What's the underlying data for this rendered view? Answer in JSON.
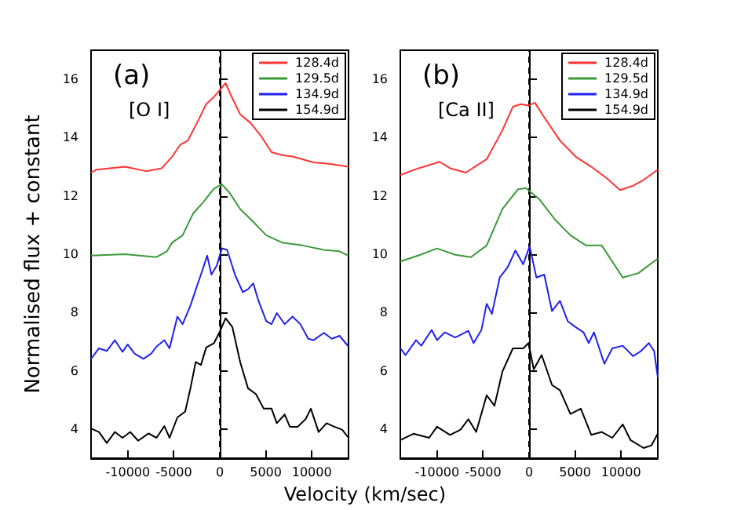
{
  "chart_data": [
    {
      "type": "line",
      "xlabel": "Velocity (km/sec)",
      "ylabel": "Normalised flux + constant",
      "annotations": [
        "(a)",
        "[O I]"
      ],
      "xlim": [
        -14000,
        14000
      ],
      "xticks": [
        -10000,
        -5000,
        0,
        5000,
        10000
      ],
      "ylim": [
        3,
        17
      ],
      "yticks": [
        4,
        6,
        8,
        10,
        12,
        14,
        16
      ],
      "grid": false,
      "legend": "top right",
      "marker": "none",
      "line_style": "solid",
      "ref_lines": [
        {
          "axis": "x",
          "value": 0,
          "color": "#000000",
          "line_style": "dashed"
        }
      ],
      "series": [
        {
          "name": "128.4d",
          "color": "#ff3333",
          "x": [
            -14000,
            -13430,
            -10300,
            -8020,
            -6310,
            -5180,
            -4320,
            -3470,
            -2330,
            -1480,
            -630,
            60,
            630,
            1370,
            2220,
            3360,
            4500,
            5630,
            6770,
            7910,
            10190,
            11890,
            14000
          ],
          "values": [
            12.8,
            12.9,
            13.0,
            12.85,
            12.95,
            13.35,
            13.75,
            13.9,
            14.6,
            15.15,
            15.4,
            15.65,
            15.87,
            15.35,
            14.8,
            14.5,
            14.05,
            13.5,
            13.4,
            13.35,
            13.15,
            13.1,
            13.0
          ]
        },
        {
          "name": "129.5d",
          "color": "#3a9a3a",
          "x": [
            -14000,
            -10300,
            -6880,
            -5750,
            -5180,
            -4040,
            -2900,
            -1760,
            -630,
            230,
            1080,
            2220,
            3360,
            5060,
            6770,
            9050,
            11320,
            13030,
            14000
          ],
          "values": [
            9.95,
            10.0,
            9.9,
            10.1,
            10.4,
            10.65,
            11.4,
            11.8,
            12.25,
            12.4,
            12.1,
            11.55,
            11.2,
            10.65,
            10.4,
            10.3,
            10.15,
            10.1,
            9.95
          ]
        },
        {
          "name": "134.9d",
          "color": "#2020ee",
          "x": [
            -14000,
            -13140,
            -12290,
            -11410,
            -10580,
            -10010,
            -9270,
            -8310,
            -7450,
            -6880,
            -6030,
            -5460,
            -4610,
            -4040,
            -3190,
            -2620,
            -2050,
            -1370,
            -910,
            -340,
            230,
            800,
            1650,
            2500,
            3070,
            3640,
            4210,
            5060,
            5630,
            6200,
            7060,
            7910,
            8760,
            9620,
            10190,
            11320,
            12180,
            13030,
            14000
          ],
          "values": [
            6.41,
            6.77,
            6.68,
            7.05,
            6.65,
            6.9,
            6.59,
            6.41,
            6.59,
            6.83,
            7.05,
            6.77,
            7.86,
            7.6,
            8.24,
            8.78,
            9.3,
            9.95,
            9.3,
            9.6,
            10.2,
            10.15,
            9.3,
            8.7,
            8.8,
            9.0,
            8.4,
            7.7,
            7.6,
            7.98,
            7.6,
            7.86,
            7.6,
            7.1,
            7.05,
            7.3,
            7.1,
            7.2,
            6.83
          ]
        },
        {
          "name": "154.9d",
          "color": "#000000",
          "x": [
            -14000,
            -13140,
            -12290,
            -11410,
            -10580,
            -9730,
            -8880,
            -7740,
            -6880,
            -6030,
            -5460,
            -4610,
            -3760,
            -3190,
            -2620,
            -2050,
            -1480,
            -630,
            -60,
            630,
            1370,
            2220,
            3070,
            3930,
            4780,
            5630,
            6200,
            7060,
            7620,
            8480,
            9330,
            9900,
            10750,
            11610,
            12460,
            13310,
            14000
          ],
          "values": [
            4.02,
            3.9,
            3.52,
            3.9,
            3.7,
            3.9,
            3.6,
            3.85,
            3.7,
            4.1,
            3.7,
            4.4,
            4.6,
            5.4,
            6.3,
            6.2,
            6.8,
            6.95,
            7.3,
            7.8,
            7.5,
            6.3,
            5.4,
            5.2,
            4.7,
            4.7,
            4.2,
            4.5,
            4.08,
            4.08,
            4.34,
            4.7,
            3.9,
            4.2,
            4.08,
            3.98,
            3.7
          ]
        }
      ]
    },
    {
      "type": "line",
      "annotations": [
        "(b)",
        "[Ca II]"
      ],
      "xlim": [
        -14000,
        14000
      ],
      "xticks": [
        -10000,
        -5000,
        0,
        5000,
        10000
      ],
      "ylim": [
        3,
        17
      ],
      "yticks": [
        4,
        6,
        8,
        10,
        12,
        14,
        16
      ],
      "grid": false,
      "legend": "top right",
      "marker": "none",
      "line_style": "solid",
      "ref_lines": [
        {
          "axis": "x",
          "value": 0,
          "color": "#000000",
          "line_style": "dashed"
        }
      ],
      "series": [
        {
          "name": "128.4d",
          "color": "#ff3333",
          "x": [
            -14000,
            -12010,
            -9730,
            -8590,
            -6880,
            -4610,
            -2900,
            -1760,
            -910,
            -60,
            630,
            1650,
            3360,
            5060,
            6770,
            8480,
            9900,
            11320,
            12460,
            14000
          ],
          "values": [
            12.72,
            12.95,
            13.17,
            12.95,
            12.8,
            13.26,
            14.25,
            15.06,
            15.15,
            15.1,
            15.2,
            14.7,
            13.9,
            13.35,
            13.0,
            12.6,
            12.2,
            12.35,
            12.55,
            12.9
          ]
        },
        {
          "name": "129.5d",
          "color": "#3a9a3a",
          "x": [
            -14000,
            -12010,
            -10010,
            -8020,
            -6320,
            -4610,
            -2900,
            -1190,
            -340,
            1080,
            2790,
            4500,
            6200,
            7910,
            10190,
            11890,
            14000
          ],
          "values": [
            9.75,
            9.96,
            10.2,
            9.98,
            9.9,
            10.3,
            11.55,
            12.23,
            12.27,
            11.9,
            11.2,
            10.65,
            10.3,
            10.3,
            9.2,
            9.35,
            9.85
          ]
        },
        {
          "name": "134.9d",
          "color": "#2020ee",
          "x": [
            -14000,
            -13430,
            -12290,
            -11720,
            -10590,
            -10010,
            -9160,
            -8020,
            -6600,
            -6030,
            -5180,
            -4610,
            -4040,
            -3190,
            -2330,
            -1480,
            -630,
            60,
            800,
            1650,
            2500,
            3360,
            4210,
            5060,
            5920,
            6490,
            7060,
            8190,
            9050,
            10190,
            11320,
            12180,
            13030,
            13600,
            14000
          ],
          "values": [
            6.77,
            6.54,
            7.05,
            6.86,
            7.4,
            7.05,
            7.32,
            7.14,
            7.37,
            6.95,
            7.4,
            8.3,
            7.95,
            9.2,
            9.55,
            10.13,
            9.65,
            10.28,
            9.2,
            9.3,
            8.05,
            8.4,
            7.7,
            7.5,
            7.32,
            6.95,
            7.32,
            6.24,
            6.77,
            6.86,
            6.5,
            6.68,
            6.95,
            6.68,
            5.78
          ]
        },
        {
          "name": "154.9d",
          "color": "#000000",
          "x": [
            -14000,
            -12570,
            -10870,
            -10010,
            -8590,
            -7450,
            -6600,
            -5750,
            -4610,
            -3760,
            -2900,
            -1760,
            -630,
            -60,
            510,
            1370,
            2500,
            3360,
            4500,
            5630,
            6770,
            7910,
            9050,
            10190,
            11040,
            12460,
            13310,
            14000
          ],
          "values": [
            3.62,
            3.84,
            3.7,
            4.08,
            3.8,
            3.98,
            4.34,
            3.9,
            5.16,
            4.8,
            5.97,
            6.77,
            6.77,
            6.95,
            6.05,
            6.54,
            5.51,
            5.33,
            4.52,
            4.7,
            3.8,
            3.9,
            3.7,
            4.16,
            3.62,
            3.35,
            3.44,
            3.84
          ]
        }
      ]
    }
  ]
}
